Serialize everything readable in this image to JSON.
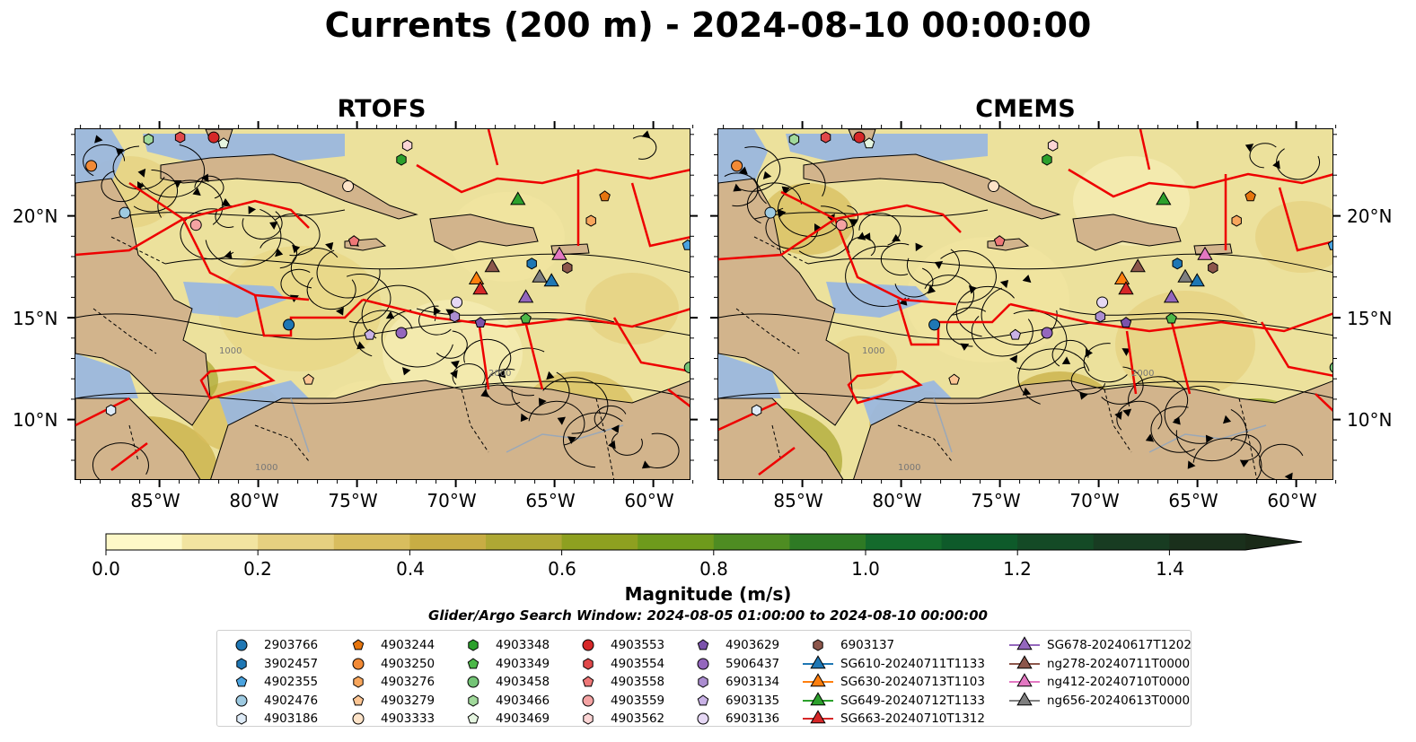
{
  "title": "Currents (200 m) - 2024-08-10 00:00:00",
  "panels": [
    {
      "title": "RTOFS"
    },
    {
      "title": "CMEMS"
    }
  ],
  "lat_labels": [
    "20°N",
    "15°N",
    "10°N"
  ],
  "lon_labels": [
    "85°W",
    "80°W",
    "75°W",
    "70°W",
    "65°W",
    "60°W"
  ],
  "contour_labels": [
    "1000",
    "2000",
    "1000"
  ],
  "colorbar": {
    "label": "Magnitude (m/s)",
    "ticks": [
      "0.0",
      "0.2",
      "0.4",
      "0.6",
      "0.8",
      "1.0",
      "1.2",
      "1.4"
    ],
    "colors": [
      "#fdf8c8",
      "#f2e4a0",
      "#e6d080",
      "#d8bd5e",
      "#c8ad44",
      "#aea834",
      "#8ea020",
      "#6e9a1c",
      "#4e8c22",
      "#2e7a24",
      "#146a2c",
      "#0e5a2a",
      "#144a26",
      "#183c22",
      "#1a301c",
      "#1a2a18"
    ]
  },
  "search_window": "Glider/Argo Search Window: 2024-08-05 01:00:00 to 2024-08-10 00:00:00",
  "colors": {
    "land": "#d2b48c",
    "shelf": "#97b6e2",
    "boundary": "#ee0000"
  },
  "legend": [
    {
      "label": "2903766",
      "marker": "circle",
      "color": "#1f77b4"
    },
    {
      "label": "3902457",
      "marker": "hexagon",
      "color": "#1f77b4"
    },
    {
      "label": "4902355",
      "marker": "pentagon",
      "color": "#4aa3df"
    },
    {
      "label": "4902476",
      "marker": "circle",
      "color": "#9ecae1"
    },
    {
      "label": "4903186",
      "marker": "hexagon",
      "color": "#deebf7"
    },
    {
      "label": "4903244",
      "marker": "pentagon",
      "color": "#e6750e"
    },
    {
      "label": "4903250",
      "marker": "circle",
      "color": "#f28a36"
    },
    {
      "label": "4903276",
      "marker": "hexagon",
      "color": "#f8a65c"
    },
    {
      "label": "4903279",
      "marker": "pentagon",
      "color": "#fcc593"
    },
    {
      "label": "4903333",
      "marker": "circle",
      "color": "#fde3c8"
    },
    {
      "label": "4903348",
      "marker": "hexagon",
      "color": "#2ca02c"
    },
    {
      "label": "4903349",
      "marker": "pentagon",
      "color": "#4cb848"
    },
    {
      "label": "4903458",
      "marker": "circle",
      "color": "#74c476"
    },
    {
      "label": "4903466",
      "marker": "hexagon",
      "color": "#a1d99b"
    },
    {
      "label": "4903469",
      "marker": "pentagon",
      "color": "#e5f5e0"
    },
    {
      "label": "4903553",
      "marker": "circle",
      "color": "#d62728"
    },
    {
      "label": "4903554",
      "marker": "hexagon",
      "color": "#e0484a"
    },
    {
      "label": "4903558",
      "marker": "pentagon",
      "color": "#ee7777"
    },
    {
      "label": "4903559",
      "marker": "circle",
      "color": "#f4a3a3"
    },
    {
      "label": "4903562",
      "marker": "hexagon",
      "color": "#fcd5d5"
    },
    {
      "label": "4903629",
      "marker": "pentagon",
      "color": "#7b52ab"
    },
    {
      "label": "5906437",
      "marker": "circle",
      "color": "#9467bd"
    },
    {
      "label": "6903134",
      "marker": "hexagon",
      "color": "#ab8dd0"
    },
    {
      "label": "6903135",
      "marker": "pentagon",
      "color": "#c9b2e6"
    },
    {
      "label": "6903136",
      "marker": "circle",
      "color": "#e6d8f5"
    },
    {
      "label": "6903137",
      "marker": "hexagon",
      "color": "#8c564b"
    },
    {
      "label": "SG610-20240711T1133",
      "marker": "triangle",
      "color": "#1f77b4"
    },
    {
      "label": "SG630-20240713T1103",
      "marker": "triangle",
      "color": "#ff7f0e"
    },
    {
      "label": "SG649-20240712T1133",
      "marker": "triangle",
      "color": "#2ca02c"
    },
    {
      "label": "SG663-20240710T1312",
      "marker": "triangle",
      "color": "#d62728"
    },
    {
      "label": "SG678-20240617T1202",
      "marker": "triangle",
      "color": "#9467bd"
    },
    {
      "label": "ng278-20240711T0000",
      "marker": "triangle",
      "color": "#8c564b"
    },
    {
      "label": "ng412-20240710T0000",
      "marker": "triangle",
      "color": "#e377c2"
    },
    {
      "label": "ng656-20240613T0000",
      "marker": "triangle",
      "color": "#7f7f7f"
    }
  ]
}
